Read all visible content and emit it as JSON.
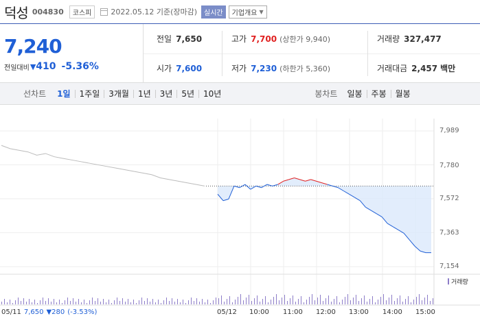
{
  "header": {
    "stock_name": "덕성",
    "stock_code": "004830",
    "market_badge": "코스피",
    "calendar_icon": "calendar-icon",
    "date_text": "2022.05.12 기준(장마감)",
    "realtime_label": "실시간",
    "company_label": "기업개요"
  },
  "summary": {
    "current_price": "7,240",
    "change_label": "전일대비",
    "change_value": "410",
    "change_rate": "-5.36%",
    "prev_close_label": "전일",
    "prev_close": "7,650",
    "high_label": "고가",
    "high": "7,700",
    "upper_limit": "(상한가 9,940)",
    "volume_label": "거래량",
    "volume": "327,477",
    "open_label": "시가",
    "open": "7,600",
    "low_label": "저가",
    "low": "7,230",
    "lower_limit": "(하한가 5,360)",
    "amount_label": "거래대금",
    "amount": "2,457",
    "amount_unit": "백만"
  },
  "period_bar": {
    "line_label": "선차트",
    "line_items": [
      "1일",
      "1주일",
      "3개월",
      "1년",
      "3년",
      "5년",
      "10년"
    ],
    "selected": "1일",
    "candle_label": "봉차트",
    "candle_items": [
      "일봉",
      "주봉",
      "월봉"
    ]
  },
  "colors": {
    "up": "#e02020",
    "down": "#1f5fd6",
    "prev_day": "#bbbbbb",
    "volume": "#8c7cc8"
  },
  "chart_data": {
    "type": "line",
    "y_ticks": [
      "7,989",
      "7,780",
      "7,572",
      "7,363",
      "7,154"
    ],
    "ylim": [
      7154,
      7989
    ],
    "x_ticks": [
      "05/12",
      "10:00",
      "11:00",
      "12:00",
      "13:00",
      "14:00",
      "15:00"
    ],
    "prev_close": 7650,
    "prev_day": {
      "start_label": "05/11",
      "close": "7,650",
      "change": "▼280",
      "rate": "(-3.53%)",
      "values": [
        7900,
        7880,
        7870,
        7860,
        7840,
        7850,
        7830,
        7820,
        7810,
        7800,
        7790,
        7780,
        7770,
        7760,
        7750,
        7740,
        7730,
        7720,
        7700,
        7690,
        7680,
        7670,
        7660,
        7650
      ]
    },
    "today": {
      "values": [
        7600,
        7560,
        7570,
        7650,
        7640,
        7660,
        7630,
        7650,
        7640,
        7660,
        7650,
        7660,
        7680,
        7690,
        7700,
        7690,
        7680,
        7690,
        7680,
        7670,
        7660,
        7650,
        7640,
        7620,
        7600,
        7580,
        7560,
        7520,
        7500,
        7480,
        7460,
        7420,
        7400,
        7380,
        7360,
        7320,
        7280,
        7250,
        7240,
        7240
      ]
    },
    "volume_label": "거래량"
  }
}
